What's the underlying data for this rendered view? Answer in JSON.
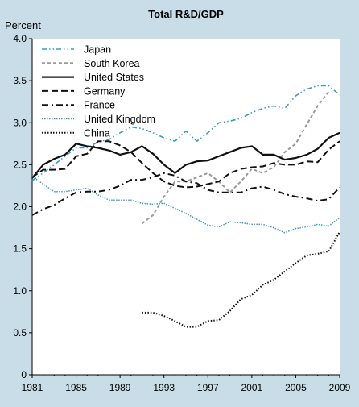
{
  "chart_data": {
    "type": "line",
    "title": "Total R&D/GDP",
    "ylabel": "Percent",
    "xlim": [
      1981,
      2009
    ],
    "ylim": [
      0,
      4.0
    ],
    "y_ticks": [
      0,
      0.5,
      1.0,
      1.5,
      2.0,
      2.5,
      3.0,
      3.5,
      4.0
    ],
    "y_tick_labels": [
      "0",
      "0.5",
      "1.0",
      "1.5",
      "2.0",
      "2.5",
      "3.0",
      "3.5",
      "4.0"
    ],
    "x_ticks": [
      1981,
      1985,
      1989,
      1993,
      1997,
      2001,
      2005,
      2009
    ],
    "x_tick_labels": [
      "1981",
      "1985",
      "1989",
      "1993",
      "1997",
      "2001",
      "2005",
      "2009"
    ],
    "grid": false,
    "legend_position": "top-left",
    "series": [
      {
        "name": "Japan",
        "color": "#3a9cc4",
        "dash": "dashdotdot",
        "x": [
          1981,
          1982,
          1983,
          1984,
          1985,
          1986,
          1987,
          1988,
          1989,
          1990,
          1991,
          1992,
          1993,
          1994,
          1995,
          1996,
          1997,
          1998,
          1999,
          2000,
          2001,
          2002,
          2003,
          2004,
          2005,
          2006,
          2007,
          2008,
          2009
        ],
        "y": [
          2.31,
          2.4,
          2.5,
          2.6,
          2.7,
          2.7,
          2.77,
          2.8,
          2.88,
          2.95,
          2.93,
          2.88,
          2.82,
          2.78,
          2.9,
          2.78,
          2.88,
          3.0,
          3.02,
          3.05,
          3.12,
          3.17,
          3.2,
          3.17,
          3.32,
          3.4,
          3.44,
          3.44,
          3.33
        ]
      },
      {
        "name": "South Korea",
        "color": "#9a9a9a",
        "dash": "dashed-light",
        "x": [
          1991,
          1992,
          1993,
          1994,
          1995,
          1996,
          1997,
          1998,
          1999,
          2000,
          2001,
          2002,
          2003,
          2004,
          2005,
          2006,
          2007,
          2008
        ],
        "y": [
          1.8,
          1.9,
          2.12,
          2.3,
          2.3,
          2.35,
          2.4,
          2.3,
          2.17,
          2.3,
          2.45,
          2.4,
          2.47,
          2.65,
          2.75,
          2.98,
          3.2,
          3.37
        ]
      },
      {
        "name": "United States",
        "color": "#111111",
        "dash": "solid",
        "x": [
          1981,
          1982,
          1983,
          1984,
          1985,
          1986,
          1987,
          1988,
          1989,
          1990,
          1991,
          1992,
          1993,
          1994,
          1995,
          1996,
          1997,
          1998,
          1999,
          2000,
          2001,
          2002,
          2003,
          2004,
          2005,
          2006,
          2007,
          2008,
          2009
        ],
        "y": [
          2.34,
          2.5,
          2.57,
          2.62,
          2.75,
          2.72,
          2.7,
          2.67,
          2.62,
          2.65,
          2.72,
          2.63,
          2.5,
          2.4,
          2.5,
          2.54,
          2.55,
          2.6,
          2.65,
          2.7,
          2.72,
          2.62,
          2.62,
          2.56,
          2.58,
          2.62,
          2.69,
          2.82,
          2.88
        ]
      },
      {
        "name": "Germany",
        "color": "#111111",
        "dash": "dashed",
        "x": [
          1981,
          1982,
          1983,
          1984,
          1985,
          1986,
          1987,
          1988,
          1989,
          1990,
          1991,
          1992,
          1993,
          1994,
          1995,
          1996,
          1997,
          1998,
          1999,
          2000,
          2001,
          2002,
          2003,
          2004,
          2005,
          2006,
          2007,
          2008,
          2009
        ],
        "y": [
          2.35,
          2.44,
          2.44,
          2.45,
          2.6,
          2.63,
          2.78,
          2.78,
          2.73,
          2.65,
          2.52,
          2.4,
          2.3,
          2.25,
          2.23,
          2.24,
          2.27,
          2.3,
          2.4,
          2.45,
          2.47,
          2.48,
          2.52,
          2.5,
          2.5,
          2.54,
          2.53,
          2.68,
          2.78
        ]
      },
      {
        "name": "France",
        "color": "#111111",
        "dash": "dashdot",
        "x": [
          1981,
          1982,
          1983,
          1984,
          1985,
          1986,
          1987,
          1988,
          1989,
          1990,
          1991,
          1992,
          1993,
          1994,
          1995,
          1996,
          1997,
          1998,
          1999,
          2000,
          2001,
          2002,
          2003,
          2004,
          2005,
          2006,
          2007,
          2008,
          2009
        ],
        "y": [
          1.9,
          1.97,
          2.02,
          2.1,
          2.17,
          2.18,
          2.18,
          2.2,
          2.25,
          2.32,
          2.32,
          2.35,
          2.4,
          2.37,
          2.3,
          2.28,
          2.2,
          2.17,
          2.17,
          2.17,
          2.22,
          2.24,
          2.2,
          2.15,
          2.12,
          2.1,
          2.07,
          2.09,
          2.23
        ]
      },
      {
        "name": "United Kingdom",
        "color": "#3a9cc4",
        "dash": "dotted",
        "x": [
          1981,
          1982,
          1983,
          1984,
          1985,
          1986,
          1987,
          1988,
          1989,
          1990,
          1991,
          1992,
          1993,
          1994,
          1995,
          1996,
          1997,
          1998,
          1999,
          2000,
          2001,
          2002,
          2003,
          2004,
          2005,
          2006,
          2007,
          2008,
          2009
        ],
        "y": [
          2.36,
          2.27,
          2.18,
          2.18,
          2.2,
          2.22,
          2.14,
          2.08,
          2.08,
          2.08,
          2.04,
          2.03,
          2.04,
          1.98,
          1.92,
          1.85,
          1.78,
          1.76,
          1.82,
          1.81,
          1.79,
          1.79,
          1.75,
          1.69,
          1.74,
          1.76,
          1.79,
          1.77,
          1.87
        ]
      },
      {
        "name": "China",
        "color": "#111111",
        "dash": "dotted-dense",
        "x": [
          1991,
          1992,
          1993,
          1994,
          1995,
          1996,
          1997,
          1998,
          1999,
          2000,
          2001,
          2002,
          2003,
          2004,
          2005,
          2006,
          2007,
          2008,
          2009
        ],
        "y": [
          0.74,
          0.74,
          0.7,
          0.64,
          0.57,
          0.57,
          0.64,
          0.65,
          0.76,
          0.9,
          0.95,
          1.07,
          1.13,
          1.23,
          1.33,
          1.42,
          1.44,
          1.47,
          1.7
        ]
      }
    ]
  }
}
